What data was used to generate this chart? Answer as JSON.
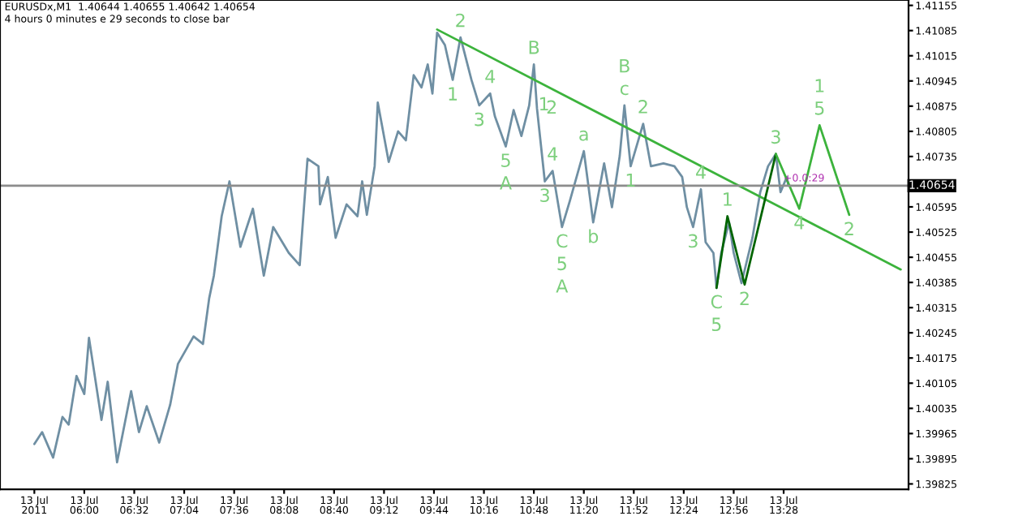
{
  "chart_data": {
    "type": "line",
    "title": "EURUSDx,M1  1.40644 1.40655 1.40642 1.40654",
    "subtitle": "4 hours 0 minutes e 29 seconds to close bar",
    "xlim": [
      "2011-07-13T05:06",
      "2011-07-13T14:48"
    ],
    "xticks": [
      {
        "value": "2011-07-13T05:28",
        "label": "13 Jul 2011"
      },
      {
        "value": "2011-07-13T06:00",
        "label": "13 Jul 06:00"
      },
      {
        "value": "2011-07-13T06:32",
        "label": "13 Jul 06:32"
      },
      {
        "value": "2011-07-13T07:04",
        "label": "13 Jul 07:04"
      },
      {
        "value": "2011-07-13T07:36",
        "label": "13 Jul 07:36"
      },
      {
        "value": "2011-07-13T08:08",
        "label": "13 Jul 08:08"
      },
      {
        "value": "2011-07-13T08:40",
        "label": "13 Jul 08:40"
      },
      {
        "value": "2011-07-13T09:12",
        "label": "13 Jul 09:12"
      },
      {
        "value": "2011-07-13T09:44",
        "label": "13 Jul 09:44"
      },
      {
        "value": "2011-07-13T10:16",
        "label": "13 Jul 10:16"
      },
      {
        "value": "2011-07-13T10:48",
        "label": "13 Jul 10:48"
      },
      {
        "value": "2011-07-13T11:20",
        "label": "13 Jul 11:20"
      },
      {
        "value": "2011-07-13T11:52",
        "label": "13 Jul 11:52"
      },
      {
        "value": "2011-07-13T12:24",
        "label": "13 Jul 12:24"
      },
      {
        "value": "2011-07-13T12:56",
        "label": "13 Jul 12:56"
      },
      {
        "value": "2011-07-13T13:28",
        "label": "13 Jul 13:28"
      }
    ],
    "ylim": [
      1.3981,
      1.4117
    ],
    "yticks": [
      1.39825,
      1.39895,
      1.39965,
      1.40035,
      1.40105,
      1.40175,
      1.40245,
      1.40315,
      1.40385,
      1.40455,
      1.40525,
      1.40595,
      1.40735,
      1.40805,
      1.40875,
      1.40945,
      1.41015,
      1.41085,
      1.41155
    ],
    "ref_lines": [
      {
        "axis": "y",
        "value": 1.40654,
        "label": "1.40654",
        "color": "#8c8c8c"
      }
    ],
    "series": [
      {
        "color": "#6f8fa3",
        "x": [
          "2011-07-13T05:28",
          "2011-07-13T05:33",
          "2011-07-13T05:40",
          "2011-07-13T05:46",
          "2011-07-13T05:50",
          "2011-07-13T05:55",
          "2011-07-13T06:00",
          "2011-07-13T06:03",
          "2011-07-13T06:11",
          "2011-07-13T06:15",
          "2011-07-13T06:21",
          "2011-07-13T06:30",
          "2011-07-13T06:35",
          "2011-07-13T06:40",
          "2011-07-13T06:48",
          "2011-07-13T06:55",
          "2011-07-13T07:00",
          "2011-07-13T07:10",
          "2011-07-13T07:16",
          "2011-07-13T07:20",
          "2011-07-13T07:23",
          "2011-07-13T07:28",
          "2011-07-13T07:33",
          "2011-07-13T07:40",
          "2011-07-13T07:48",
          "2011-07-13T07:55",
          "2011-07-13T08:01",
          "2011-07-13T08:11",
          "2011-07-13T08:18",
          "2011-07-13T08:23",
          "2011-07-13T08:30",
          "2011-07-13T08:31",
          "2011-07-13T08:36",
          "2011-07-13T08:41",
          "2011-07-13T08:48",
          "2011-07-13T08:55",
          "2011-07-13T08:58",
          "2011-07-13T09:01",
          "2011-07-13T09:06",
          "2011-07-13T09:08",
          "2011-07-13T09:15",
          "2011-07-13T09:21",
          "2011-07-13T09:26",
          "2011-07-13T09:31",
          "2011-07-13T09:36",
          "2011-07-13T09:40",
          "2011-07-13T09:43",
          "2011-07-13T09:46",
          "2011-07-13T09:51",
          "2011-07-13T09:56",
          "2011-07-13T10:01",
          "2011-07-13T10:08",
          "2011-07-13T10:13",
          "2011-07-13T10:20",
          "2011-07-13T10:23",
          "2011-07-13T10:30",
          "2011-07-13T10:35",
          "2011-07-13T10:40",
          "2011-07-13T10:45",
          "2011-07-13T10:48",
          "2011-07-13T10:50",
          "2011-07-13T10:55",
          "2011-07-13T11:00",
          "2011-07-13T11:06",
          "2011-07-13T11:11",
          "2011-07-13T11:20",
          "2011-07-13T11:26",
          "2011-07-13T11:33",
          "2011-07-13T11:38",
          "2011-07-13T11:43",
          "2011-07-13T11:46",
          "2011-07-13T11:50",
          "2011-07-13T11:58",
          "2011-07-13T12:03",
          "2011-07-13T12:11",
          "2011-07-13T12:18",
          "2011-07-13T12:23",
          "2011-07-13T12:26",
          "2011-07-13T12:30",
          "2011-07-13T12:35",
          "2011-07-13T12:38",
          "2011-07-13T12:43",
          "2011-07-13T12:45",
          "2011-07-13T12:48",
          "2011-07-13T12:53",
          "2011-07-13T12:56",
          "2011-07-13T13:01",
          "2011-07-13T13:08",
          "2011-07-13T13:13",
          "2011-07-13T13:18",
          "2011-07-13T13:23",
          "2011-07-13T13:26",
          "2011-07-13T13:30",
          "2011-07-13T13:31"
        ],
        "values": [
          1.39936,
          1.39969,
          1.39898,
          1.40011,
          1.3999,
          1.40125,
          1.40075,
          1.40231,
          1.40003,
          1.40109,
          1.39885,
          1.40083,
          1.39969,
          1.40041,
          1.3994,
          1.40045,
          1.40159,
          1.40235,
          1.40214,
          1.40341,
          1.40404,
          1.40569,
          1.40666,
          1.40484,
          1.4059,
          1.40404,
          1.40539,
          1.40467,
          1.40433,
          1.40729,
          1.40708,
          1.40602,
          1.40678,
          1.40509,
          1.40602,
          1.40569,
          1.40666,
          1.40573,
          1.40708,
          1.40885,
          1.4072,
          1.40805,
          1.4078,
          1.40961,
          1.40927,
          1.40991,
          1.4091,
          1.41079,
          1.41045,
          1.40948,
          1.41066,
          1.40948,
          1.40877,
          1.4091,
          1.40847,
          1.40763,
          1.40864,
          1.40792,
          1.40877,
          1.40991,
          1.40868,
          1.40666,
          1.40695,
          1.40539,
          1.40611,
          1.4075,
          1.40552,
          1.40716,
          1.40594,
          1.40737,
          1.40877,
          1.40708,
          1.40826,
          1.40708,
          1.40716,
          1.40708,
          1.40678,
          1.40594,
          1.40539,
          1.40644,
          1.40497,
          1.40467,
          1.4037,
          1.40467,
          1.40552,
          1.40467,
          1.40383,
          1.40509,
          1.40636,
          1.40708,
          1.40742,
          1.40636,
          1.40678,
          1.40654
        ]
      },
      {
        "color": "#3cb33c",
        "x": [
          "2011-07-13T09:46",
          "2011-07-13T14:43"
        ],
        "values": [
          1.41088,
          1.40421
        ]
      },
      {
        "color": "#006400",
        "x": [
          "2011-07-13T12:45",
          "2011-07-13T12:52",
          "2011-07-13T13:03",
          "2011-07-13T13:23"
        ],
        "values": [
          1.4037,
          1.40569,
          1.40379,
          1.40742
        ]
      },
      {
        "color": "#3cb33c",
        "x": [
          "2011-07-13T13:23",
          "2011-07-13T13:38",
          "2011-07-13T13:51",
          "2011-07-13T14:10"
        ],
        "values": [
          1.40742,
          1.4059,
          1.40822,
          1.40573
        ]
      }
    ],
    "annotations": [
      {
        "text": "2",
        "x": "2011-07-13T10:01",
        "y": 1.41066
      },
      {
        "text": "1",
        "x": "2011-07-13T09:56",
        "y": 1.40948
      },
      {
        "text": "4",
        "x": "2011-07-13T10:20",
        "y": 1.4091
      },
      {
        "text": "3",
        "x": "2011-07-13T10:13",
        "y": 1.40877
      },
      {
        "text": "5",
        "x": "2011-07-13T10:30",
        "y": 1.40763
      },
      {
        "text": "A",
        "x": "2011-07-13T10:30",
        "y": 1.40763
      },
      {
        "text": "B",
        "x": "2011-07-13T10:48",
        "y": 1.40991
      },
      {
        "text": "2",
        "x": "2011-07-13T10:50",
        "y": 1.40868
      },
      {
        "text": "1",
        "x": "2011-07-13T10:45",
        "y": 1.40877
      },
      {
        "text": "4",
        "x": "2011-07-13T11:00",
        "y": 1.40695
      },
      {
        "text": "3",
        "x": "2011-07-13T10:55",
        "y": 1.40666
      },
      {
        "text": "C",
        "x": "2011-07-13T11:06",
        "y": 1.40539
      },
      {
        "text": "5",
        "x": "2011-07-13T11:06",
        "y": 1.40539
      },
      {
        "text": "A",
        "x": "2011-07-13T11:06",
        "y": 1.40539
      },
      {
        "text": "a",
        "x": "2011-07-13T11:20",
        "y": 1.4075
      },
      {
        "text": "b",
        "x": "2011-07-13T11:26",
        "y": 1.40552
      },
      {
        "text": "c",
        "x": "2011-07-13T11:46",
        "y": 1.40877
      },
      {
        "text": "B",
        "x": "2011-07-13T11:46",
        "y": 1.40877
      },
      {
        "text": "1",
        "x": "2011-07-13T11:50",
        "y": 1.40708
      },
      {
        "text": "2",
        "x": "2011-07-13T11:58",
        "y": 1.40826
      },
      {
        "text": "4",
        "x": "2011-07-13T12:35",
        "y": 1.40644
      },
      {
        "text": "3",
        "x": "2011-07-13T12:30",
        "y": 1.40539
      },
      {
        "text": "C",
        "x": "2011-07-13T12:45",
        "y": 1.4037
      },
      {
        "text": "5",
        "x": "2011-07-13T12:45",
        "y": 1.4037
      },
      {
        "text": "1",
        "x": "2011-07-13T12:52",
        "y": 1.40569
      },
      {
        "text": "2",
        "x": "2011-07-13T13:03",
        "y": 1.40379
      },
      {
        "text": "3",
        "x": "2011-07-13T13:23",
        "y": 1.40742
      },
      {
        "text": "4",
        "x": "2011-07-13T13:38",
        "y": 1.4059
      },
      {
        "text": "5",
        "x": "2011-07-13T13:51",
        "y": 1.40822
      },
      {
        "text": "1",
        "x": "2011-07-13T13:51",
        "y": 1.40822
      },
      {
        "text": "2",
        "x": "2011-07-13T14:10",
        "y": 1.40573
      },
      "+0.0:29"
    ]
  }
}
